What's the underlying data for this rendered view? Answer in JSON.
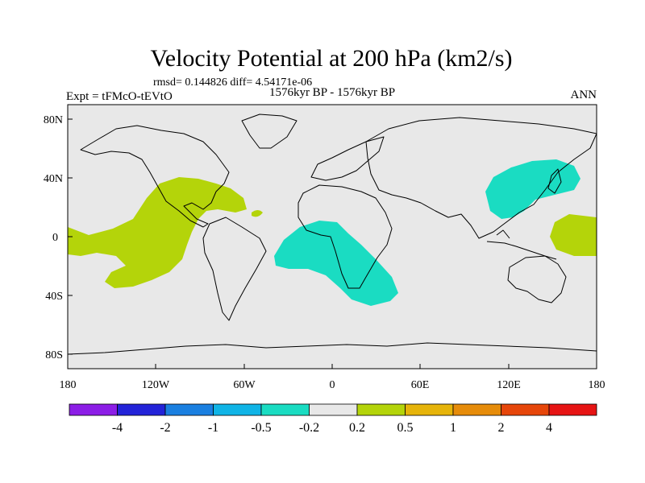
{
  "title": "Velocity Potential at 200 hPa (km2/s)",
  "stats_line": "rmsd= 0.144826 diff= 4.54171e-06",
  "experiment": "Expt = tFMcO-tEVtO",
  "period": "1576kyr BP - 1576kyr BP",
  "season": "ANN",
  "colors": {
    "ocean_bg": "#e8e8e8",
    "positive_fill": "#b4d40a",
    "negative_fill": "#1adcc2",
    "coast": "#000000"
  },
  "lat_ticks": [
    "80N",
    "40N",
    "0",
    "40S",
    "80S"
  ],
  "lon_ticks": [
    "180",
    "120W",
    "60W",
    "0",
    "60E",
    "120E",
    "180"
  ],
  "colorbar": {
    "colors": [
      "#8c1ee6",
      "#2323d8",
      "#1a7fe0",
      "#10b4e6",
      "#1adcc2",
      "#e8e8e8",
      "#b4d40a",
      "#e6b40a",
      "#e68c0a",
      "#e6460a",
      "#e61414"
    ],
    "labels": [
      "-4",
      "-2",
      "-1",
      "-0.5",
      "-0.2",
      "0.2",
      "0.5",
      "1",
      "2",
      "4"
    ]
  }
}
